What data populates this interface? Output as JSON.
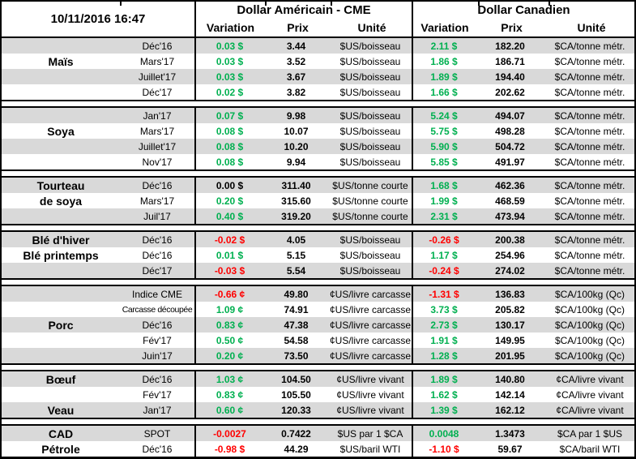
{
  "meta": {
    "timestamp": "10/11/2016 16:47"
  },
  "header": {
    "us_title": "Dollar Américain - CME",
    "ca_title": "Dollar Canadien",
    "variation_label": "Variation",
    "prix_label": "Prix",
    "unite_label": "Unité"
  },
  "colors": {
    "positive": "#00B050",
    "negative": "#FF0000",
    "neutral": "#000000",
    "stripe": "#D9D9D9"
  },
  "sections": [
    {
      "name": "mais",
      "rows": [
        {
          "label": "",
          "month": "Déc'16",
          "us_var": "0.03 $",
          "us_dir": "up",
          "us_prix": "3.44",
          "us_unit": "$US/boisseau",
          "ca_var": "2.11 $",
          "ca_dir": "up",
          "ca_prix": "182.20",
          "ca_unit": "$CA/tonne métr."
        },
        {
          "label": "Maïs",
          "month": "Mars'17",
          "us_var": "0.03 $",
          "us_dir": "up",
          "us_prix": "3.52",
          "us_unit": "$US/boisseau",
          "ca_var": "1.86 $",
          "ca_dir": "up",
          "ca_prix": "186.71",
          "ca_unit": "$CA/tonne métr."
        },
        {
          "label": "",
          "month": "Juillet'17",
          "us_var": "0.03 $",
          "us_dir": "up",
          "us_prix": "3.67",
          "us_unit": "$US/boisseau",
          "ca_var": "1.89 $",
          "ca_dir": "up",
          "ca_prix": "194.40",
          "ca_unit": "$CA/tonne métr."
        },
        {
          "label": "",
          "month": "Déc'17",
          "us_var": "0.02 $",
          "us_dir": "up",
          "us_prix": "3.82",
          "us_unit": "$US/boisseau",
          "ca_var": "1.66 $",
          "ca_dir": "up",
          "ca_prix": "202.62",
          "ca_unit": "$CA/tonne métr."
        }
      ]
    },
    {
      "name": "soya",
      "rows": [
        {
          "label": "",
          "month": "Jan'17",
          "us_var": "0.07 $",
          "us_dir": "up",
          "us_prix": "9.98",
          "us_unit": "$US/boisseau",
          "ca_var": "5.24 $",
          "ca_dir": "up",
          "ca_prix": "494.07",
          "ca_unit": "$CA/tonne métr."
        },
        {
          "label": "Soya",
          "month": "Mars'17",
          "us_var": "0.08 $",
          "us_dir": "up",
          "us_prix": "10.07",
          "us_unit": "$US/boisseau",
          "ca_var": "5.75 $",
          "ca_dir": "up",
          "ca_prix": "498.28",
          "ca_unit": "$CA/tonne métr."
        },
        {
          "label": "",
          "month": "Juillet'17",
          "us_var": "0.08 $",
          "us_dir": "up",
          "us_prix": "10.20",
          "us_unit": "$US/boisseau",
          "ca_var": "5.90 $",
          "ca_dir": "up",
          "ca_prix": "504.72",
          "ca_unit": "$CA/tonne métr."
        },
        {
          "label": "",
          "month": "Nov'17",
          "us_var": "0.08 $",
          "us_dir": "up",
          "us_prix": "9.94",
          "us_unit": "$US/boisseau",
          "ca_var": "5.85 $",
          "ca_dir": "up",
          "ca_prix": "491.97",
          "ca_unit": "$CA/tonne métr."
        }
      ]
    },
    {
      "name": "tourteau-de-soya",
      "rows": [
        {
          "label": "Tourteau",
          "month": "Déc'16",
          "us_var": "0.00 $",
          "us_dir": "flat",
          "us_prix": "311.40",
          "us_unit": "$US/tonne courte",
          "ca_var": "1.68 $",
          "ca_dir": "up",
          "ca_prix": "462.36",
          "ca_unit": "$CA/tonne métr."
        },
        {
          "label": "de soya",
          "month": "Mars'17",
          "us_var": "0.20 $",
          "us_dir": "up",
          "us_prix": "315.60",
          "us_unit": "$US/tonne courte",
          "ca_var": "1.99 $",
          "ca_dir": "up",
          "ca_prix": "468.59",
          "ca_unit": "$CA/tonne métr."
        },
        {
          "label": "",
          "month": "Juil'17",
          "us_var": "0.40 $",
          "us_dir": "up",
          "us_prix": "319.20",
          "us_unit": "$US/tonne courte",
          "ca_var": "2.31 $",
          "ca_dir": "up",
          "ca_prix": "473.94",
          "ca_unit": "$CA/tonne métr."
        }
      ]
    },
    {
      "name": "ble",
      "rows": [
        {
          "label": "Blé d'hiver",
          "month": "Déc'16",
          "us_var": "-0.02 $",
          "us_dir": "down",
          "us_prix": "4.05",
          "us_unit": "$US/boisseau",
          "ca_var": "-0.26 $",
          "ca_dir": "down",
          "ca_prix": "200.38",
          "ca_unit": "$CA/tonne métr."
        },
        {
          "label": "Blé printemps",
          "month": "Déc'16",
          "us_var": "0.01 $",
          "us_dir": "up",
          "us_prix": "5.15",
          "us_unit": "$US/boisseau",
          "ca_var": "1.17 $",
          "ca_dir": "up",
          "ca_prix": "254.96",
          "ca_unit": "$CA/tonne métr."
        },
        {
          "label": "",
          "month": "Déc'17",
          "us_var": "-0.03 $",
          "us_dir": "down",
          "us_prix": "5.54",
          "us_unit": "$US/boisseau",
          "ca_var": "-0.24 $",
          "ca_dir": "down",
          "ca_prix": "274.02",
          "ca_unit": "$CA/tonne métr."
        }
      ]
    },
    {
      "name": "porc",
      "rows": [
        {
          "label": "",
          "month": "Indice CME",
          "us_var": "-0.66 ¢",
          "us_dir": "down",
          "us_prix": "49.80",
          "us_unit": "¢US/livre carcasse",
          "ca_var": "-1.31 $",
          "ca_dir": "down",
          "ca_prix": "136.83",
          "ca_unit": "$CA/100kg (Qc)"
        },
        {
          "label": "",
          "month": "Carcasse découpée",
          "month_condensed": true,
          "us_var": "1.09 ¢",
          "us_dir": "up",
          "us_prix": "74.91",
          "us_unit": "¢US/livre carcasse",
          "ca_var": "3.73 $",
          "ca_dir": "up",
          "ca_prix": "205.82",
          "ca_unit": "$CA/100kg (Qc)"
        },
        {
          "label": "Porc",
          "month": "Déc'16",
          "us_var": "0.83 ¢",
          "us_dir": "up",
          "us_prix": "47.38",
          "us_unit": "¢US/livre carcasse",
          "ca_var": "2.73 $",
          "ca_dir": "up",
          "ca_prix": "130.17",
          "ca_unit": "$CA/100kg (Qc)"
        },
        {
          "label": "",
          "month": "Fév'17",
          "us_var": "0.50 ¢",
          "us_dir": "up",
          "us_prix": "54.58",
          "us_unit": "¢US/livre carcasse",
          "ca_var": "1.91 $",
          "ca_dir": "up",
          "ca_prix": "149.95",
          "ca_unit": "$CA/100kg (Qc)"
        },
        {
          "label": "",
          "month": "Juin'17",
          "us_var": "0.20 ¢",
          "us_dir": "up",
          "us_prix": "73.50",
          "us_unit": "¢US/livre carcasse",
          "ca_var": "1.28 $",
          "ca_dir": "up",
          "ca_prix": "201.95",
          "ca_unit": "$CA/100kg (Qc)"
        }
      ]
    },
    {
      "name": "boeuf-veau",
      "rows": [
        {
          "label": "Bœuf",
          "month": "Déc'16",
          "us_var": "1.03 ¢",
          "us_dir": "up",
          "us_prix": "104.50",
          "us_unit": "¢US/livre vivant",
          "ca_var": "1.89 $",
          "ca_dir": "up",
          "ca_prix": "140.80",
          "ca_unit": "¢CA/livre vivant"
        },
        {
          "label": "",
          "month": "Fév'17",
          "us_var": "0.83 ¢",
          "us_dir": "up",
          "us_prix": "105.50",
          "us_unit": "¢US/livre vivant",
          "ca_var": "1.62 $",
          "ca_dir": "up",
          "ca_prix": "142.14",
          "ca_unit": "¢CA/livre vivant"
        },
        {
          "label": "Veau",
          "month": "Jan'17",
          "us_var": "0.60 ¢",
          "us_dir": "up",
          "us_prix": "120.33",
          "us_unit": "¢US/livre vivant",
          "ca_var": "1.39 $",
          "ca_dir": "up",
          "ca_prix": "162.12",
          "ca_unit": "¢CA/livre vivant"
        }
      ]
    },
    {
      "name": "cad-petrole",
      "rows": [
        {
          "label": "CAD",
          "month": "SPOT",
          "us_var": "-0.0027",
          "us_dir": "down",
          "us_prix": "0.7422",
          "us_unit": "$US par 1 $CA",
          "ca_var": "0.0048",
          "ca_dir": "up",
          "ca_prix": "1.3473",
          "ca_unit": "$CA par 1 $US"
        },
        {
          "label": "Pétrole",
          "month": "Déc'16",
          "us_var": "-0.98 $",
          "us_dir": "down",
          "us_prix": "44.29",
          "us_unit": "$US/baril WTI",
          "ca_var": "-1.10 $",
          "ca_dir": "down",
          "ca_prix": "59.67",
          "ca_unit": "$CA/baril WTI"
        }
      ]
    }
  ]
}
